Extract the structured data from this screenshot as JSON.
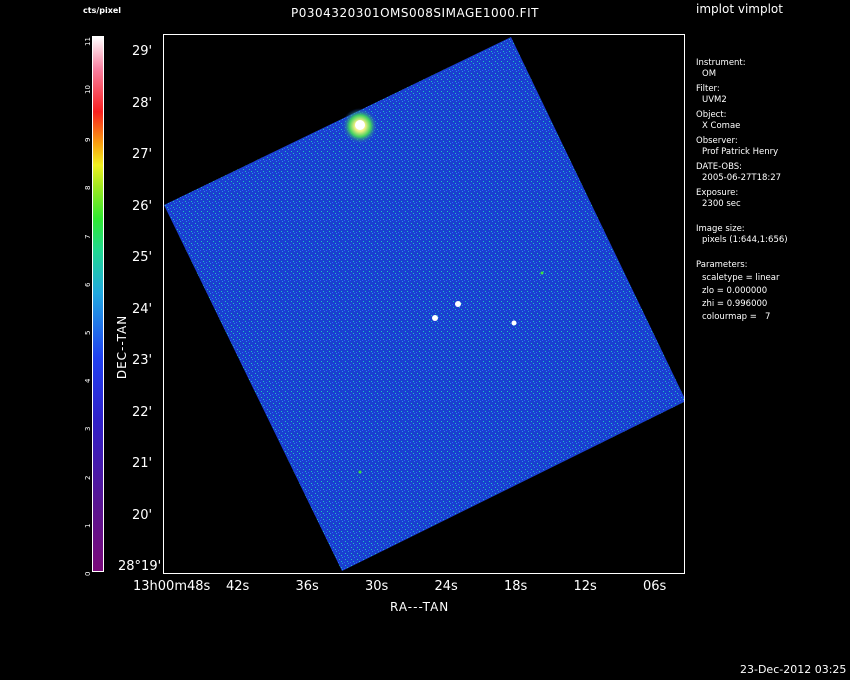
{
  "app_title": "implot vimplot",
  "image_title": "P0304320301OMS008SIMAGE1000.FIT",
  "colorbar": {
    "label": "cts/pixel",
    "ticks": [
      "0",
      "1",
      "2",
      "3",
      "4",
      "5",
      "6",
      "7",
      "8",
      "9",
      "10",
      "11"
    ]
  },
  "axes": {
    "y_title": "DEC--TAN",
    "x_title": "RA---TAN",
    "y_ticks": [
      "29'",
      "28'",
      "27'",
      "26'",
      "25'",
      "24'",
      "23'",
      "22'",
      "21'",
      "20'",
      "28°19'"
    ],
    "x_ticks": [
      "13h00m48s",
      "42s",
      "36s",
      "30s",
      "24s",
      "18s",
      "12s",
      "06s"
    ]
  },
  "info": {
    "instrument_label": "Instrument:",
    "instrument": "OM",
    "filter_label": "Filter:",
    "filter": "UVM2",
    "object_label": "Object:",
    "object": "X Comae",
    "observer_label": "Observer:",
    "observer": "Prof Patrick Henry",
    "date_label": "DATE-OBS:",
    "date": "2005-06-27T18:27",
    "exposure_label": "Exposure:",
    "exposure": "2300 sec",
    "image_size_label": "Image size:",
    "image_size": "pixels (1:644,1:656)",
    "parameters_label": "Parameters:",
    "scaletype": "scaletype = linear",
    "zlo": "zlo = 0.000000",
    "zhi": "zhi = 0.996000",
    "colourmap": "colourmap =   7"
  },
  "footer_date": "23-Dec-2012 03:25",
  "colors": {
    "field": "#1a3fd0",
    "noise": "#20c0c0",
    "background": "#000000"
  }
}
